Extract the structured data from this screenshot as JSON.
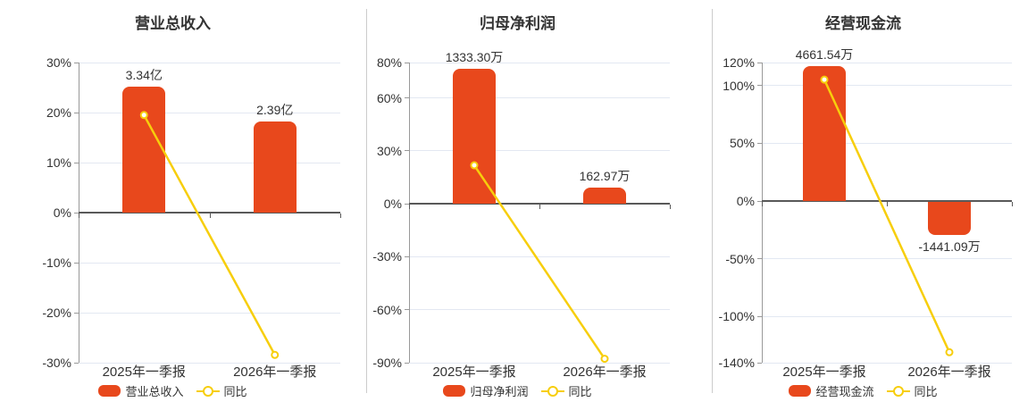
{
  "page": {
    "background": "#FFFFFF"
  },
  "colors": {
    "bar": "#E8481C",
    "line": "#F7CE0C",
    "marker_fill": "#FFFFFF",
    "grid": "#E3E8F2",
    "axis": "#999999",
    "zero_axis": "#595959",
    "text": "#333333",
    "divider": "#CCCCCC"
  },
  "chart_data": [
    {
      "type": "bar+line",
      "title": "营业总收入",
      "categories": [
        "2025年一季报",
        "2026年一季报"
      ],
      "bar_series": {
        "name": "营业总收入",
        "value_labels": [
          "3.34亿",
          "2.39亿"
        ],
        "axis_heights_pct": [
          25.1,
          18.2
        ]
      },
      "line_series": {
        "name": "同比",
        "values_pct": [
          19.5,
          -28.44
        ]
      },
      "y_ticks_pct": [
        30,
        20,
        10,
        0,
        -10,
        -20,
        -30
      ],
      "ylim_pct": [
        -30,
        30
      ],
      "grid": true,
      "legend_position": "bottom"
    },
    {
      "type": "bar+line",
      "title": "归母净利润",
      "categories": [
        "2025年一季报",
        "2026年一季报"
      ],
      "bar_series": {
        "name": "归母净利润",
        "value_labels": [
          "1333.30万",
          "162.97万"
        ],
        "axis_heights_pct": [
          76.4,
          9.1
        ]
      },
      "line_series": {
        "name": "同比",
        "values_pct": [
          21.8,
          -87.78
        ]
      },
      "y_ticks_pct": [
        80,
        60,
        30,
        0,
        -30,
        -60,
        -90
      ],
      "ylim_pct": [
        -90,
        80
      ],
      "grid": true,
      "legend_position": "bottom"
    },
    {
      "type": "bar+line",
      "title": "经营现金流",
      "categories": [
        "2025年一季报",
        "2026年一季报"
      ],
      "bar_series": {
        "name": "经营现金流",
        "value_labels": [
          "4661.54万",
          "-1441.09万"
        ],
        "axis_heights_pct": [
          117,
          -29.4
        ]
      },
      "line_series": {
        "name": "同比",
        "values_pct": [
          105.2,
          -130.92
        ]
      },
      "y_ticks_pct": [
        120,
        100,
        50,
        0,
        -50,
        -100,
        -140
      ],
      "ylim_pct": [
        -140,
        120
      ],
      "grid": true,
      "legend_position": "bottom"
    }
  ]
}
